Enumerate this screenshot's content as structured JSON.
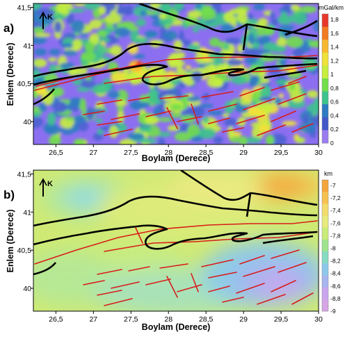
{
  "panels": [
    {
      "letter": "a)",
      "north_label": "K",
      "xlabel": "Boylam (Derece)",
      "ylabel": "Enlem (Derece)",
      "x_ticks": [
        "26,5",
        "27",
        "27,5",
        "28",
        "28,5",
        "29",
        "29,5",
        "30"
      ],
      "y_ticks": [
        "41,5",
        "41",
        "40,5",
        "40"
      ],
      "xlim": [
        26.2,
        30.0
      ],
      "ylim": [
        39.7,
        41.55
      ],
      "colorbar": {
        "unit": "mGal/km",
        "labels": [
          "1,8",
          "1,6",
          "1,4",
          "1,2",
          "1",
          "0,8",
          "0,6",
          "0,4",
          "0,2",
          "0"
        ],
        "colors": [
          "#e8372b",
          "#f27a22",
          "#f7b830",
          "#f0e13a",
          "#c6ee3e",
          "#72de4b",
          "#3ec38c",
          "#2f7bc2",
          "#4159c9",
          "#9a7cf0"
        ]
      }
    },
    {
      "letter": "b)",
      "north_label": "K",
      "xlabel": "Boylam (Derece)",
      "ylabel": "Enlem (Derece)",
      "x_ticks": [
        "26,5",
        "27",
        "27,5",
        "28",
        "28,5",
        "29",
        "29,5",
        "30"
      ],
      "y_ticks": [
        "41,5",
        "41",
        "40,5",
        "40"
      ],
      "xlim": [
        26.2,
        30.0
      ],
      "ylim": [
        39.7,
        41.55
      ],
      "colorbar": {
        "unit": "km",
        "labels": [
          "-7",
          "-7,2",
          "-7,4",
          "-7,6",
          "-7,8",
          "-8",
          "-8,2",
          "-8,4",
          "-8,6",
          "-8,8",
          "-9"
        ],
        "colors": [
          "#f4a53a",
          "#f6c24f",
          "#f3dc6d",
          "#e7ea7d",
          "#c9ec78",
          "#9fe48c",
          "#86dcc2",
          "#8cc8ea",
          "#a6b4ef",
          "#c9a6ee",
          "#d6a6e6"
        ]
      }
    }
  ]
}
